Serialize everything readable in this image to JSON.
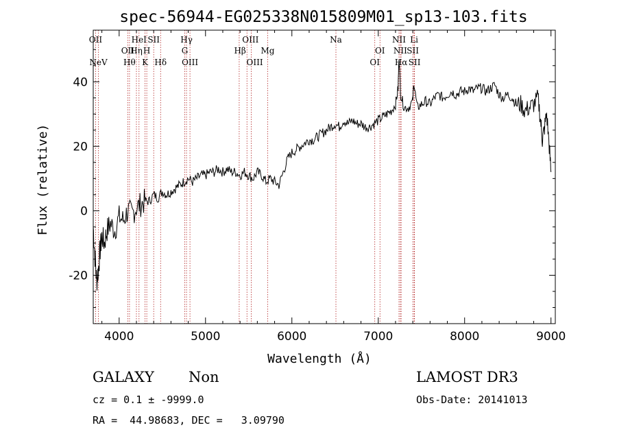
{
  "chart_data": {
    "type": "line",
    "title": "spec-56944-EG025338N015809M01_sp13-103.fits",
    "xlabel": "Wavelength (Å)",
    "ylabel": "Flux (relative)",
    "xlim": [
      3700,
      9050
    ],
    "ylim": [
      -35,
      56
    ],
    "xticks": [
      4000,
      5000,
      6000,
      7000,
      8000,
      9000
    ],
    "yticks": [
      -20,
      0,
      20,
      40
    ],
    "grid": false,
    "line_color": "#000000",
    "marker_color": "#b22222",
    "spectrum": {
      "x": [
        3700,
        3720,
        3740,
        3760,
        3780,
        3800,
        3830,
        3860,
        3900,
        3950,
        4000,
        4050,
        4100,
        4150,
        4200,
        4250,
        4300,
        4350,
        4400,
        4450,
        4500,
        4550,
        4600,
        4650,
        4700,
        4750,
        4800,
        4850,
        4900,
        4950,
        5000,
        5050,
        5100,
        5150,
        5200,
        5250,
        5300,
        5350,
        5400,
        5450,
        5500,
        5550,
        5600,
        5650,
        5700,
        5750,
        5800,
        5850,
        5900,
        5950,
        6000,
        6050,
        6100,
        6150,
        6200,
        6250,
        6300,
        6350,
        6400,
        6450,
        6500,
        6550,
        6600,
        6650,
        6700,
        6750,
        6800,
        6850,
        6900,
        6950,
        7000,
        7050,
        7100,
        7150,
        7200,
        7230,
        7240,
        7260,
        7300,
        7350,
        7400,
        7410,
        7450,
        7500,
        7550,
        7600,
        7650,
        7700,
        7750,
        7800,
        7850,
        7900,
        7950,
        8000,
        8050,
        8100,
        8150,
        8200,
        8250,
        8300,
        8350,
        8400,
        8450,
        8500,
        8550,
        8600,
        8650,
        8700,
        8750,
        8800,
        8850,
        8880,
        8900,
        8920,
        8950,
        8980,
        9000
      ],
      "y": [
        -5,
        -14,
        -22,
        -18,
        -12,
        -8,
        -10,
        -6,
        -4,
        -6,
        -2,
        -3,
        0,
        -1,
        1,
        2,
        3,
        3,
        5,
        4,
        6,
        5,
        6,
        7,
        8,
        9,
        10,
        9,
        10,
        11,
        11,
        12,
        12,
        13,
        12,
        13,
        12,
        12,
        11,
        12,
        11,
        10,
        12,
        11,
        9,
        10,
        9,
        8,
        12,
        16,
        18,
        19,
        20,
        21,
        22,
        22,
        23,
        24,
        25,
        26,
        27,
        26,
        28,
        27,
        28,
        27,
        27,
        26,
        26,
        27,
        28,
        29,
        30,
        31,
        33,
        38,
        48,
        36,
        32,
        32,
        34,
        40,
        32,
        33,
        34,
        33,
        35,
        36,
        35,
        36,
        37,
        36,
        37,
        37,
        38,
        37,
        38,
        38,
        37,
        38,
        39,
        36,
        35,
        36,
        35,
        33,
        33,
        31,
        32,
        33,
        35,
        28,
        22,
        25,
        30,
        20,
        12
      ]
    },
    "markers": [
      {
        "label": "NeV",
        "x": 3760,
        "row": 3
      },
      {
        "label": "OII",
        "x": 3727,
        "row": 0
      },
      {
        "label": "OII",
        "x": 4100,
        "row": 1
      },
      {
        "label": "Hθ",
        "x": 4120,
        "row": 2
      },
      {
        "label": "Hη",
        "x": 4200,
        "row": 1
      },
      {
        "label": "HeI",
        "x": 4230,
        "row": 0
      },
      {
        "label": "H",
        "x": 4320,
        "row": 1
      },
      {
        "label": "K",
        "x": 4300,
        "row": 2
      },
      {
        "label": "SII",
        "x": 4400,
        "row": 0
      },
      {
        "label": "Hδ",
        "x": 4480,
        "row": 2
      },
      {
        "label": "Hγ",
        "x": 4780,
        "row": 0
      },
      {
        "label": "G",
        "x": 4760,
        "row": 1
      },
      {
        "label": "OIII",
        "x": 4820,
        "row": 2
      },
      {
        "label": "OIII",
        "x": 5520,
        "row": 0
      },
      {
        "label": "Hβ",
        "x": 5400,
        "row": 1
      },
      {
        "label": "OIII",
        "x": 5570,
        "row": 2
      },
      {
        "label": "Mg",
        "x": 5720,
        "row": 1
      },
      {
        "label": "Na",
        "x": 6510,
        "row": 0
      },
      {
        "label": "OI",
        "x": 7020,
        "row": 1
      },
      {
        "label": "OI",
        "x": 6960,
        "row": 2
      },
      {
        "label": "NII",
        "x": 7240,
        "row": 0
      },
      {
        "label": "NII",
        "x": 7255,
        "row": 1
      },
      {
        "label": "Hα",
        "x": 7265,
        "row": 2
      },
      {
        "label": "Li",
        "x": 7415,
        "row": 0
      },
      {
        "label": "SII",
        "x": 7400,
        "row": 1
      },
      {
        "label": "SII",
        "x": 7420,
        "row": 2
      }
    ],
    "marker_lines": [
      3760,
      3727,
      4100,
      4120,
      4200,
      4230,
      4320,
      4300,
      4400,
      4480,
      4780,
      4760,
      4820,
      5390,
      5480,
      5530,
      5720,
      6510,
      6960,
      7020,
      7240,
      7255,
      7265,
      7400,
      7415,
      7420
    ]
  },
  "info": {
    "object_class": "GALAXY",
    "subclass": "Non",
    "survey": "LAMOST DR3",
    "redshift": "cz = 0.1 ± -9999.0",
    "obs_date": "Obs-Date: 20141013",
    "coords": "RA =  44.98683, DEC =   3.09790"
  }
}
